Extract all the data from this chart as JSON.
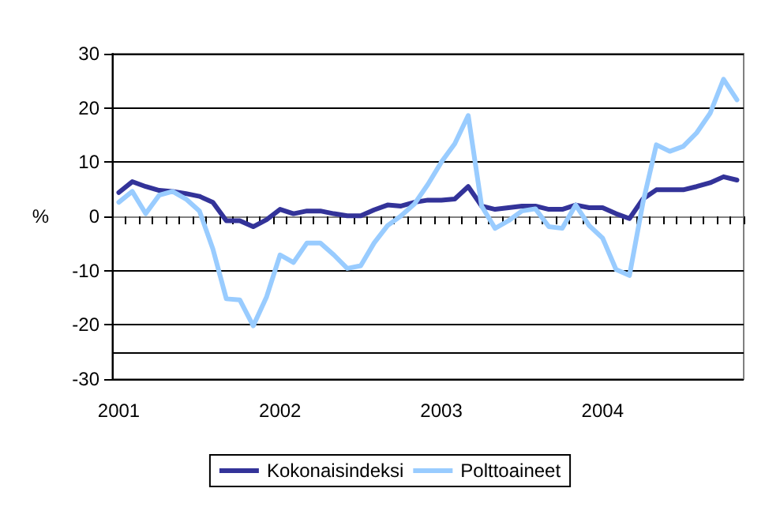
{
  "chart_data": {
    "type": "line",
    "ylabel": "%",
    "categories": [
      "2001",
      null,
      null,
      null,
      null,
      null,
      null,
      null,
      null,
      null,
      null,
      null,
      "2002",
      null,
      null,
      null,
      null,
      null,
      null,
      null,
      null,
      null,
      null,
      null,
      "2003",
      null,
      null,
      null,
      null,
      null,
      null,
      null,
      null,
      null,
      null,
      null,
      "2004",
      null,
      null,
      null,
      null,
      null,
      null,
      null,
      null,
      null,
      null
    ],
    "series": [
      {
        "name": "Kokonaisindeksi",
        "color": "#333399",
        "values": [
          4.4,
          6.4,
          5.5,
          4.8,
          4.6,
          4.2,
          3.7,
          2.6,
          -0.8,
          -0.8,
          -1.9,
          -0.6,
          1.3,
          0.5,
          1.0,
          1.0,
          0.5,
          0.1,
          0.1,
          1.2,
          2.1,
          1.9,
          2.6,
          3.0,
          3.0,
          3.2,
          5.5,
          1.9,
          1.3,
          1.6,
          1.9,
          1.9,
          1.3,
          1.3,
          2.1,
          1.6,
          1.6,
          0.5,
          -0.4,
          3.2,
          4.9,
          4.9,
          4.9,
          5.5,
          6.2,
          7.3,
          6.7
        ]
      },
      {
        "name": "Polttoaineet",
        "color": "#99ccff",
        "values": [
          2.6,
          4.6,
          0.5,
          3.9,
          4.6,
          3.2,
          1.0,
          -6.0,
          -15.2,
          -15.4,
          -20.2,
          -14.8,
          -7.1,
          -8.5,
          -4.9,
          -4.9,
          -7.1,
          -9.6,
          -9.1,
          -4.9,
          -1.7,
          0.1,
          2.3,
          5.9,
          10.0,
          13.4,
          18.6,
          1.9,
          -2.2,
          -0.8,
          1.0,
          1.4,
          -1.9,
          -2.2,
          2.1,
          -1.7,
          -4.0,
          -9.8,
          -10.9,
          2.5,
          13.2,
          12.0,
          12.9,
          15.4,
          19.0,
          25.3,
          21.5
        ]
      }
    ],
    "ylim": [
      -30,
      30
    ],
    "yticks": [
      -30,
      -20,
      -10,
      0,
      10,
      20,
      30
    ],
    "ref_lines": [
      {
        "axis": "y",
        "value": -25,
        "label": null,
        "color": "#000000"
      }
    ],
    "grid": "y",
    "legend": "bottom",
    "marker": "none",
    "line_style": "solid"
  }
}
